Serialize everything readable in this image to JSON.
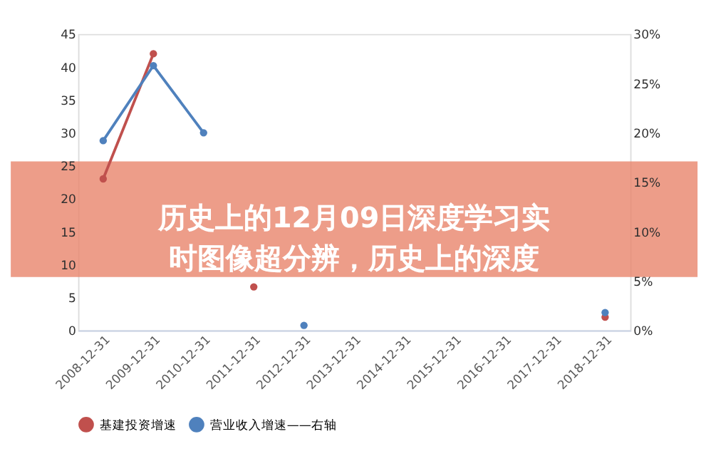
{
  "chart_data": {
    "type": "line",
    "categories": [
      "2008-12-31",
      "2009-12-31",
      "2010-12-31",
      "2011-12-31",
      "2012-12-31",
      "2013-12-31",
      "2014-12-31",
      "2015-12-31",
      "2016-12-31",
      "2017-12-31",
      "2018-12-31"
    ],
    "series": [
      {
        "name": "基建投资增速",
        "color": "#c0504d",
        "values": [
          23,
          42,
          null,
          6.6,
          null,
          null,
          null,
          null,
          null,
          null,
          2
        ]
      },
      {
        "name": "营业收入增速——右轴",
        "color": "#4f81bd",
        "axis": "y2",
        "values": [
          19.2,
          26.8,
          20,
          null,
          0.5,
          null,
          null,
          null,
          null,
          null,
          1.8
        ]
      }
    ],
    "ylim": [
      0,
      45
    ],
    "yticks": [
      0,
      5,
      10,
      15,
      20,
      25,
      30,
      35,
      40,
      45
    ],
    "y2lim": [
      0,
      30
    ],
    "y2ticks": [
      {
        "value": 0,
        "label": "0%"
      },
      {
        "value": 5,
        "label": "5%"
      },
      {
        "value": 10,
        "label": "10%"
      },
      {
        "value": 15,
        "label": "15%"
      },
      {
        "value": 20,
        "label": "20%"
      },
      {
        "value": 25,
        "label": "25%"
      },
      {
        "value": 30,
        "label": "30%"
      }
    ],
    "annotations": [
      "历史上的12月09日深度学习实时图像超分辨，历史上的深度"
    ],
    "marker": "circle",
    "line_style": "solid",
    "legend": "bottom",
    "grid": false
  }
}
